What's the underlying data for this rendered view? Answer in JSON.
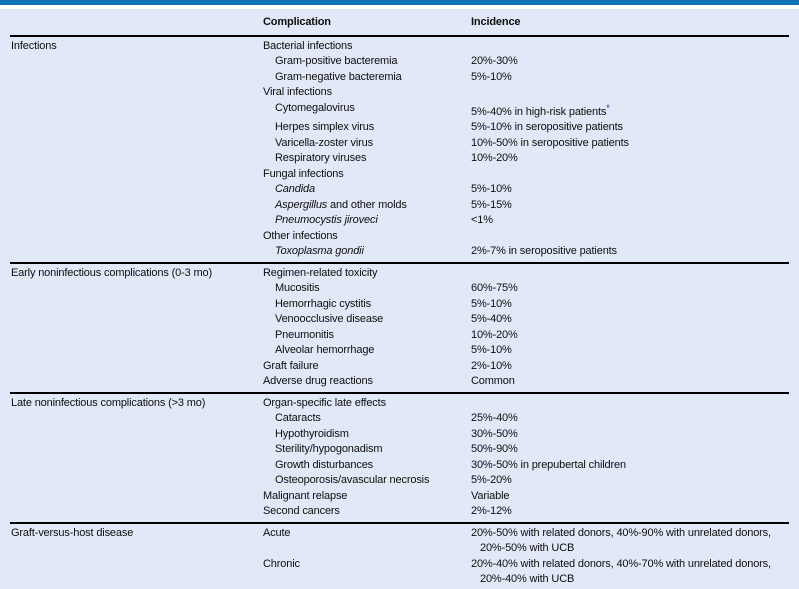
{
  "header": {
    "complication": "Complication",
    "incidence": "Incidence"
  },
  "colors": {
    "accent_bar": "#1272b6",
    "sheet_background": "#e1e9f8",
    "rule": "#000000",
    "text": "#0e0e0e",
    "footnote_marker": "#2b3a8f"
  },
  "sections": [
    {
      "rows": [
        {
          "category": "Infections",
          "complication": "Bacterial infections",
          "indent": 0,
          "incidence": ""
        },
        {
          "category": "",
          "complication": "Gram-positive bacteremia",
          "indent": 1,
          "incidence": "20%-30%"
        },
        {
          "category": "",
          "complication": "Gram-negative bacteremia",
          "indent": 1,
          "incidence": "5%-10%"
        },
        {
          "category": "",
          "complication": "Viral infections",
          "indent": 0,
          "incidence": ""
        },
        {
          "category": "",
          "complication": "Cytomegalovirus",
          "indent": 1,
          "incidence": "5%-40% in high-risk patients",
          "footnote_marker": "*"
        },
        {
          "category": "",
          "complication": "Herpes simplex virus",
          "indent": 1,
          "incidence": "5%-10% in seropositive patients"
        },
        {
          "category": "",
          "complication": "Varicella-zoster virus",
          "indent": 1,
          "incidence": "10%-50% in seropositive patients"
        },
        {
          "category": "",
          "complication": "Respiratory viruses",
          "indent": 1,
          "incidence": "10%-20%"
        },
        {
          "category": "",
          "complication": "Fungal infections",
          "indent": 0,
          "incidence": ""
        },
        {
          "category": "",
          "complication_italic": "Candida",
          "complication": "",
          "indent": 1,
          "incidence": "5%-10%"
        },
        {
          "category": "",
          "complication_italic": "Aspergillus",
          "complication": " and other molds",
          "indent": 1,
          "incidence": "5%-15%"
        },
        {
          "category": "",
          "complication_italic": "Pneumocystis jiroveci",
          "complication": "",
          "indent": 1,
          "incidence": "<1%"
        },
        {
          "category": "",
          "complication": "Other infections",
          "indent": 0,
          "incidence": ""
        },
        {
          "category": "",
          "complication_italic": "Toxoplasma gondii",
          "complication": "",
          "indent": 1,
          "incidence": "2%-7% in seropositive patients"
        }
      ]
    },
    {
      "rows": [
        {
          "category": "Early noninfectious complications (0-3 mo)",
          "complication": "Regimen-related toxicity",
          "indent": 0,
          "incidence": ""
        },
        {
          "category": "",
          "complication": "Mucositis",
          "indent": 1,
          "incidence": "60%-75%"
        },
        {
          "category": "",
          "complication": "Hemorrhagic cystitis",
          "indent": 1,
          "incidence": "5%-10%"
        },
        {
          "category": "",
          "complication": "Venoocclusive disease",
          "indent": 1,
          "incidence": "5%-40%"
        },
        {
          "category": "",
          "complication": "Pneumonitis",
          "indent": 1,
          "incidence": "10%-20%"
        },
        {
          "category": "",
          "complication": "Alveolar hemorrhage",
          "indent": 1,
          "incidence": "5%-10%"
        },
        {
          "category": "",
          "complication": "Graft failure",
          "indent": 0,
          "incidence": "2%-10%"
        },
        {
          "category": "",
          "complication": "Adverse drug reactions",
          "indent": 0,
          "incidence": "Common"
        }
      ]
    },
    {
      "rows": [
        {
          "category": "Late noninfectious complications (>3 mo)",
          "complication": "Organ-specific late effects",
          "indent": 0,
          "incidence": ""
        },
        {
          "category": "",
          "complication": "Cataracts",
          "indent": 1,
          "incidence": "25%-40%"
        },
        {
          "category": "",
          "complication": "Hypothyroidism",
          "indent": 1,
          "incidence": "30%-50%"
        },
        {
          "category": "",
          "complication": "Sterility/hypogonadism",
          "indent": 1,
          "incidence": "50%-90%"
        },
        {
          "category": "",
          "complication": "Growth disturbances",
          "indent": 1,
          "incidence": "30%-50% in prepubertal children"
        },
        {
          "category": "",
          "complication": "Osteoporosis/avascular necrosis",
          "indent": 1,
          "incidence": "5%-20%"
        },
        {
          "category": "",
          "complication": "Malignant relapse",
          "indent": 0,
          "incidence": "Variable"
        },
        {
          "category": "",
          "complication": "Second cancers",
          "indent": 0,
          "incidence": "2%-12%"
        }
      ]
    },
    {
      "rows": [
        {
          "category": "Graft-versus-host disease",
          "complication": "Acute",
          "indent": 0,
          "incidence_lines": [
            "20%-50% with related donors, 40%-90% with unrelated donors,",
            "20%-50% with UCB"
          ]
        },
        {
          "category": "",
          "complication": "Chronic",
          "indent": 0,
          "incidence_lines": [
            "20%-40% with related donors, 40%-70% with unrelated donors,",
            "20%-40% with UCB"
          ]
        }
      ]
    }
  ]
}
